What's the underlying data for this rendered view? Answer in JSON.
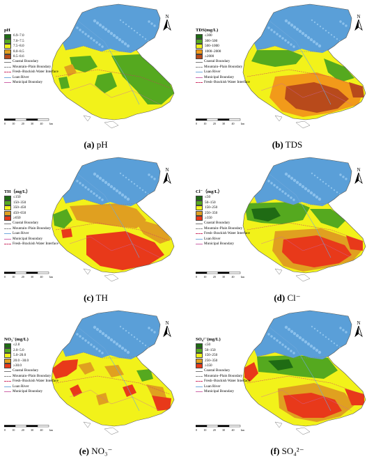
{
  "panels": [
    {
      "id": "a",
      "caption_letter": "(a)",
      "caption_text": "pH",
      "legend_title": "pH",
      "classes": [
        {
          "label": "6.9–7.0",
          "color": "#1f6b14"
        },
        {
          "label": "7.0–7.5",
          "color": "#55a91f"
        },
        {
          "label": "7.5–8.0",
          "color": "#f2f21a"
        },
        {
          "label": "8.0–8.5",
          "color": "#e0a020"
        },
        {
          "label": "8.5–8.6",
          "color": "#b84a1b"
        }
      ],
      "lines": [
        {
          "label": "Coastal Boundary",
          "color": "#777777",
          "style": "solid"
        },
        {
          "label": "Mountain–Plain Boundary",
          "color": "#888888",
          "style": "dashed"
        },
        {
          "label": "Fresh–Brackish Water Interface",
          "color": "#cc3366",
          "style": "dashed"
        },
        {
          "label": "Luan River",
          "color": "#6fa8dc",
          "style": "solid"
        },
        {
          "label": "Municipal Boundary",
          "color": "#cc66aa",
          "style": "solid"
        }
      ]
    },
    {
      "id": "b",
      "caption_letter": "(b)",
      "caption_text": "TDS",
      "legend_title": "TDS(mg/L)",
      "classes": [
        {
          "label": "≤300",
          "color": "#1f6b14"
        },
        {
          "label": "300–500",
          "color": "#55a91f"
        },
        {
          "label": "500–1000",
          "color": "#f2f21a"
        },
        {
          "label": "1000–2000",
          "color": "#f29a1a"
        },
        {
          "label": "≥2000",
          "color": "#b84a1b"
        }
      ],
      "lines": [
        {
          "label": "Coastal Boundary",
          "color": "#777777",
          "style": "solid"
        },
        {
          "label": "Mountain–Plain Boundary",
          "color": "#888888",
          "style": "dashed"
        },
        {
          "label": "Luan River",
          "color": "#6fa8dc",
          "style": "solid"
        },
        {
          "label": "Municipal Boundary",
          "color": "#cc66aa",
          "style": "solid"
        },
        {
          "label": "Fresh–Brackish Water Interface",
          "color": "#cc3366",
          "style": "dashed"
        }
      ]
    },
    {
      "id": "c",
      "caption_letter": "(c)",
      "caption_text": "TH",
      "legend_title": "TH（mg/L）",
      "classes": [
        {
          "label": "≤150",
          "color": "#1f6b14"
        },
        {
          "label": "150–350",
          "color": "#55a91f"
        },
        {
          "label": "350–450",
          "color": "#f2f21a"
        },
        {
          "label": "450–650",
          "color": "#e0a020"
        },
        {
          "label": "≥650",
          "color": "#e8391a"
        }
      ],
      "lines": [
        {
          "label": "Coastal Boundary",
          "color": "#777777",
          "style": "solid"
        },
        {
          "label": "Mountain–Plain Boundary",
          "color": "#888888",
          "style": "dashed"
        },
        {
          "label": "Luan River",
          "color": "#6fa8dc",
          "style": "solid"
        },
        {
          "label": "Municipal Boundary",
          "color": "#cc66aa",
          "style": "solid"
        },
        {
          "label": "Fresh–Brackish Water Interface",
          "color": "#cc3366",
          "style": "dashed"
        }
      ]
    },
    {
      "id": "d",
      "caption_letter": "(d)",
      "caption_text": "Cl⁻",
      "legend_title": "Cl⁻（mg/L）",
      "classes": [
        {
          "label": "≤50",
          "color": "#1f6b14"
        },
        {
          "label": "50–150",
          "color": "#55a91f"
        },
        {
          "label": "150–250",
          "color": "#f2f21a"
        },
        {
          "label": "250–350",
          "color": "#e0a020"
        },
        {
          "label": "≥350",
          "color": "#e8391a"
        }
      ],
      "lines": [
        {
          "label": "Coastal Boundary",
          "color": "#777777",
          "style": "solid"
        },
        {
          "label": "Mountain–Plain Boundary",
          "color": "#888888",
          "style": "dashed"
        },
        {
          "label": "Fresh–Brackish Water Interface",
          "color": "#cc3366",
          "style": "dashed"
        },
        {
          "label": "Luan River",
          "color": "#6fa8dc",
          "style": "solid"
        },
        {
          "label": "Municipal Boundary",
          "color": "#cc66aa",
          "style": "solid"
        }
      ]
    },
    {
      "id": "e",
      "caption_letter": "(e)",
      "caption_text": "NO₃⁻",
      "legend_title": "NO₃⁻(mg/L)",
      "classes": [
        {
          "label": "≤2.0",
          "color": "#1f6b14"
        },
        {
          "label": "2.0–5.0",
          "color": "#55a91f"
        },
        {
          "label": "5.0–20.0",
          "color": "#f2f21a"
        },
        {
          "label": "20.0 –30.0",
          "color": "#e0a020"
        },
        {
          "label": "≥30.0",
          "color": "#e8391a"
        }
      ],
      "lines": [
        {
          "label": "Coastal Boundary",
          "color": "#777777",
          "style": "solid"
        },
        {
          "label": "Mountain–Plain Boundary",
          "color": "#888888",
          "style": "dashed"
        },
        {
          "label": "Fresh–Brackish Water Interface",
          "color": "#cc3366",
          "style": "dashed"
        },
        {
          "label": "Luan River",
          "color": "#6fa8dc",
          "style": "solid"
        },
        {
          "label": "Municipal Boundary",
          "color": "#cc66aa",
          "style": "solid"
        }
      ]
    },
    {
      "id": "f",
      "caption_letter": "(f)",
      "caption_text": "SO₄²⁻",
      "legend_title": "SO₄²⁻(mg/L)",
      "classes": [
        {
          "label": "≤50",
          "color": "#1f6b14"
        },
        {
          "label": "50–150",
          "color": "#55a91f"
        },
        {
          "label": "150–250",
          "color": "#f2f21a"
        },
        {
          "label": "250–350",
          "color": "#e0a020"
        },
        {
          "label": "≥350",
          "color": "#e8391a"
        }
      ],
      "lines": [
        {
          "label": "Coastal Boundary",
          "color": "#777777",
          "style": "solid"
        },
        {
          "label": "Mountain–Plain Boundary",
          "color": "#888888",
          "style": "dashed"
        },
        {
          "label": "Fresh–Brackish Water Interface",
          "color": "#cc3366",
          "style": "dashed"
        },
        {
          "label": "Luan River",
          "color": "#6fa8dc",
          "style": "solid"
        },
        {
          "label": "Municipal Boundary",
          "color": "#cc66aa",
          "style": "solid"
        }
      ]
    }
  ],
  "north_label": "N",
  "scale_ticks": [
    "0",
    "10",
    "20",
    "30",
    "40"
  ],
  "scale_unit": "km",
  "mountain_color": "#5a9fd8"
}
